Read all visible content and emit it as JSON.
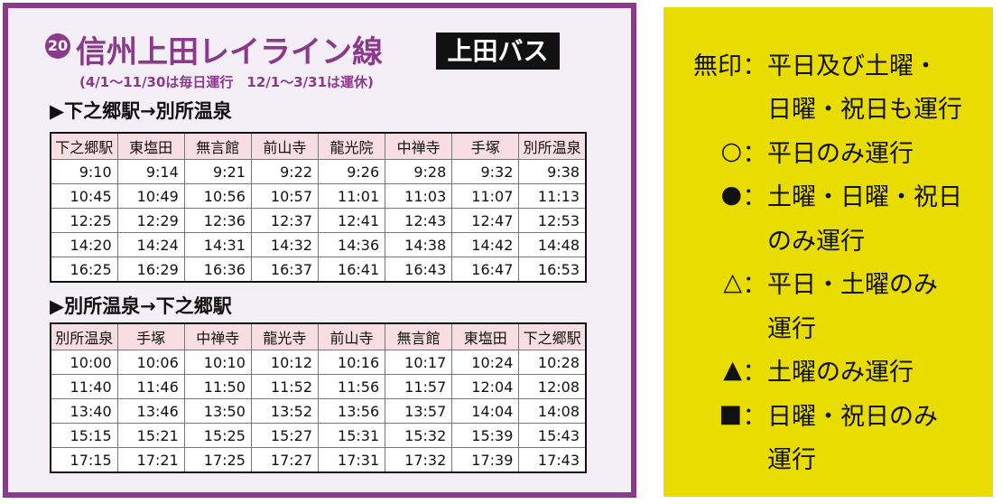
{
  "header": {
    "number": "20",
    "title": "信州上田レイライン線",
    "operator": "上田バス",
    "note": "(4/1～11/30は毎日運行　12/1～3/31は運休)"
  },
  "sections": [
    {
      "title": "▶下之郷駅→別所温泉",
      "columns": [
        "下之郷駅",
        "東塩田",
        "無言館",
        "前山寺",
        "龍光院",
        "中禅寺",
        "手塚",
        "別所温泉"
      ],
      "rows": [
        [
          "9:10",
          "9:14",
          "9:21",
          "9:22",
          "9:26",
          "9:28",
          "9:32",
          "9:38"
        ],
        [
          "10:45",
          "10:49",
          "10:56",
          "10:57",
          "11:01",
          "11:03",
          "11:07",
          "11:13"
        ],
        [
          "12:25",
          "12:29",
          "12:36",
          "12:37",
          "12:41",
          "12:43",
          "12:47",
          "12:53"
        ],
        [
          "14:20",
          "14:24",
          "14:31",
          "14:32",
          "14:36",
          "14:38",
          "14:42",
          "14:48"
        ],
        [
          "16:25",
          "16:29",
          "16:36",
          "16:37",
          "16:41",
          "16:43",
          "16:47",
          "16:53"
        ]
      ]
    },
    {
      "title": "▶別所温泉→下之郷駅",
      "columns": [
        "別所温泉",
        "手塚",
        "中禅寺",
        "龍光寺",
        "前山寺",
        "無言館",
        "東塩田",
        "下之郷駅"
      ],
      "rows": [
        [
          "10:00",
          "10:06",
          "10:10",
          "10:12",
          "10:16",
          "10:17",
          "10:24",
          "10:28"
        ],
        [
          "11:40",
          "11:46",
          "11:50",
          "11:52",
          "11:56",
          "11:57",
          "12:04",
          "12:08"
        ],
        [
          "13:40",
          "13:46",
          "13:50",
          "13:52",
          "13:56",
          "13:57",
          "14:04",
          "14:08"
        ],
        [
          "15:15",
          "15:21",
          "15:25",
          "15:27",
          "15:31",
          "15:32",
          "15:39",
          "15:43"
        ],
        [
          "17:15",
          "17:21",
          "17:25",
          "17:27",
          "17:31",
          "17:32",
          "17:39",
          "17:43"
        ]
      ]
    }
  ],
  "legend": {
    "separator": "：",
    "items": [
      {
        "symbol": "無印",
        "lines": [
          "平日及び土曜・",
          "日曜・祝日も運行"
        ]
      },
      {
        "symbol": "○",
        "lines": [
          "平日のみ運行"
        ]
      },
      {
        "symbol": "●",
        "lines": [
          "土曜・日曜・祝日",
          "のみ運行"
        ]
      },
      {
        "symbol": "△",
        "lines": [
          "平日・土曜のみ",
          "運行"
        ]
      },
      {
        "symbol": "▲",
        "lines": [
          "土曜のみ運行"
        ]
      },
      {
        "symbol": "■",
        "lines": [
          "日曜・祝日のみ",
          "運行"
        ]
      }
    ]
  }
}
